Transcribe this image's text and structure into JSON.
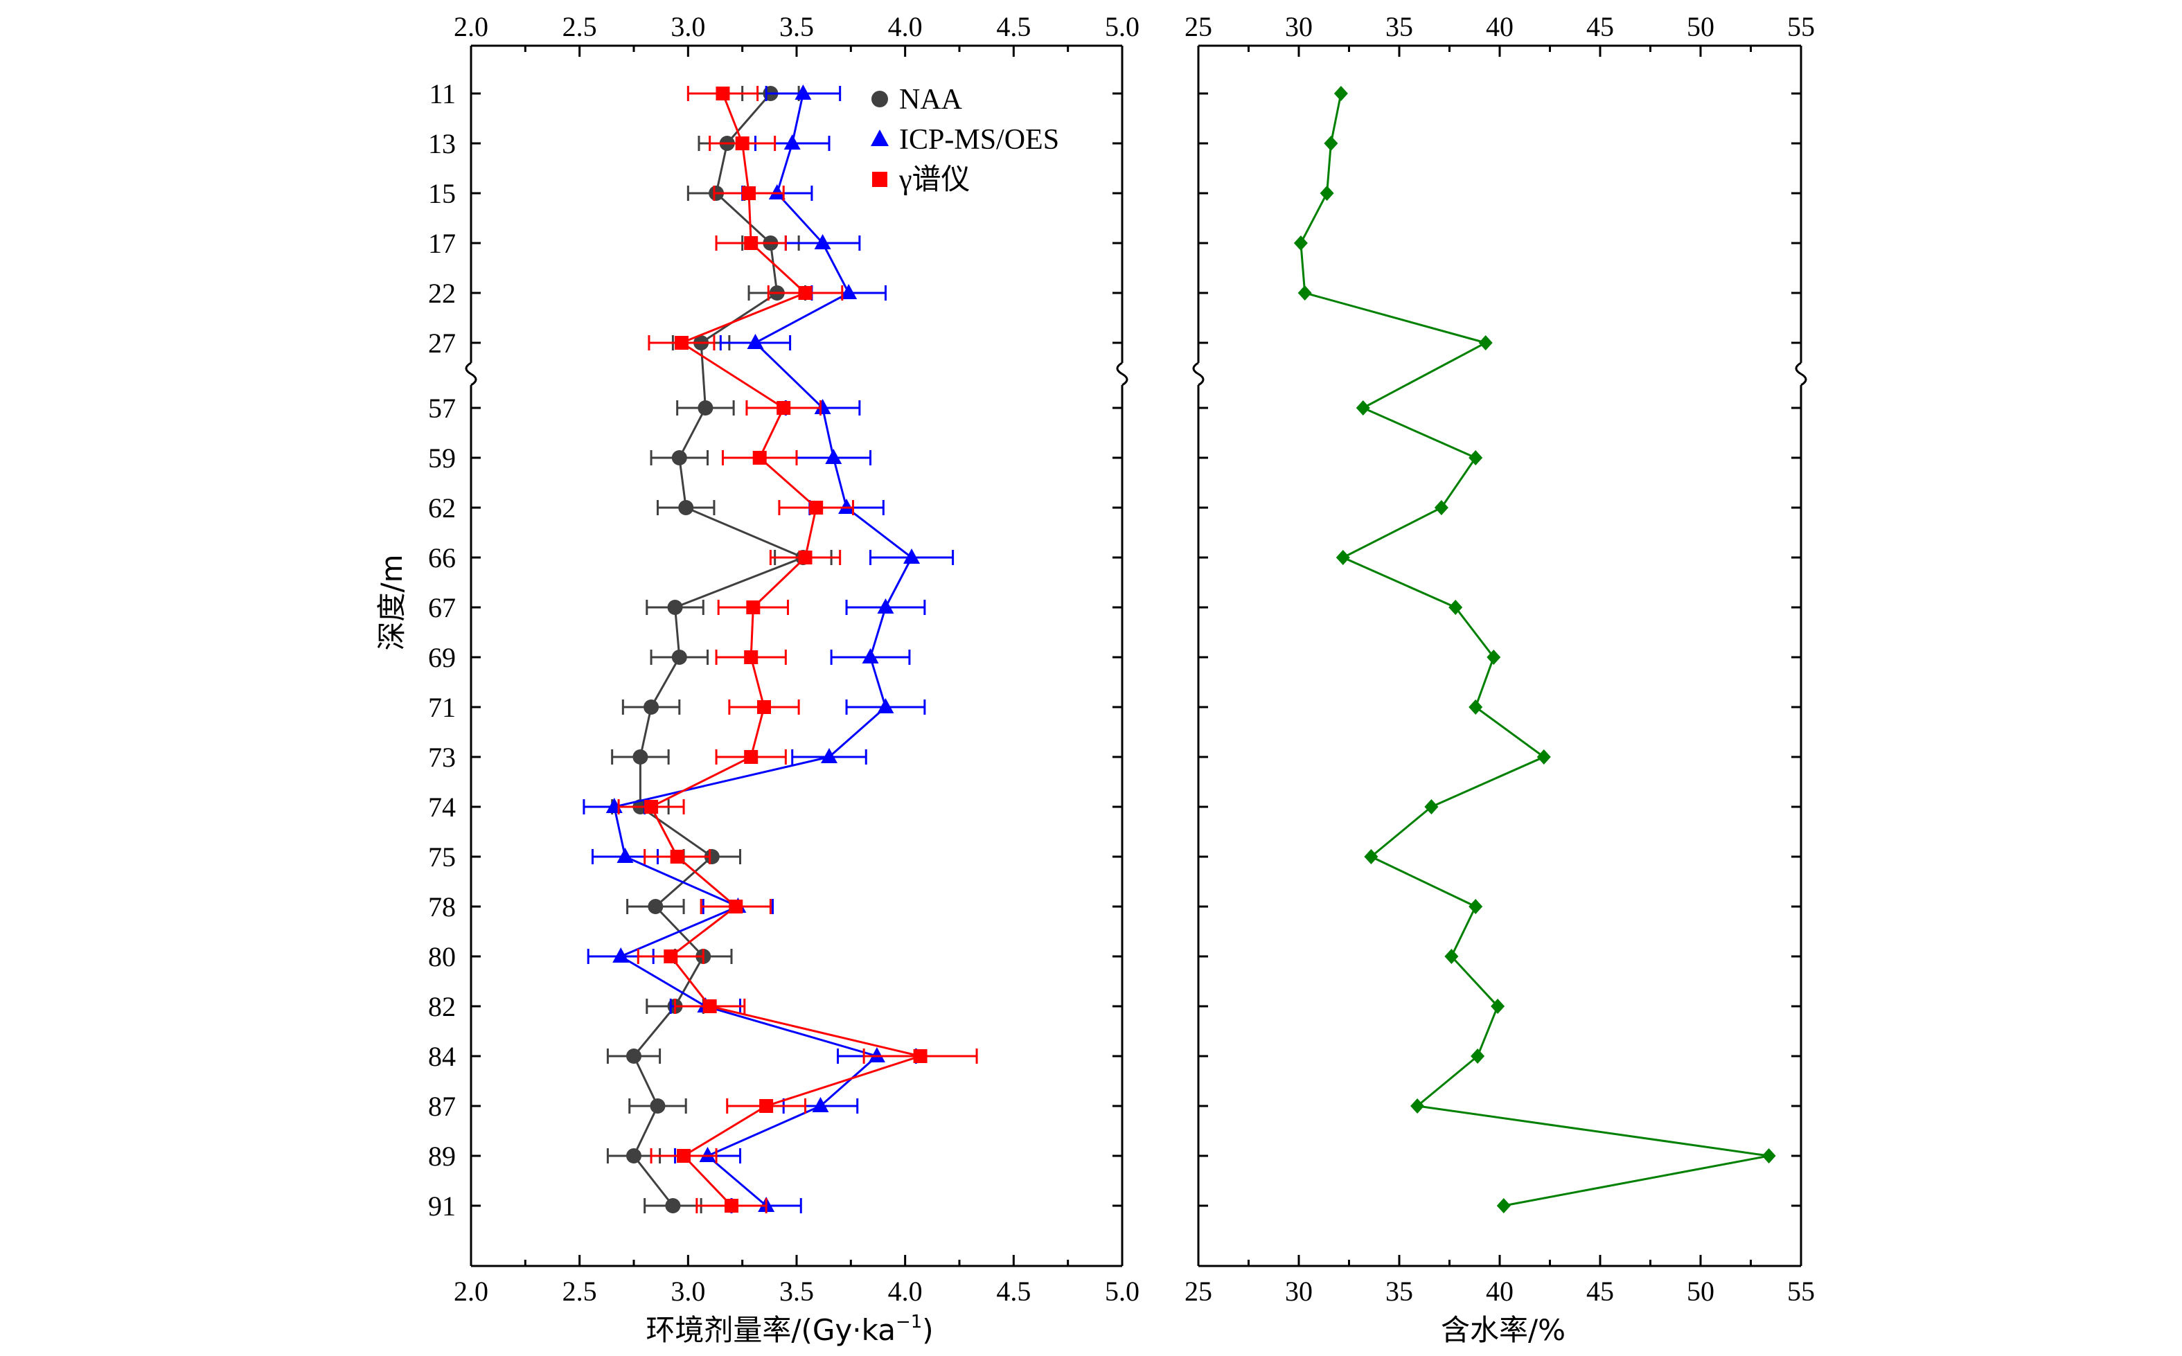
{
  "chart_data": [
    {
      "type": "line",
      "xlabel": "环境剂量率/(Gy·ka",
      "xlabel_sup": "−1",
      "xlabel_close": ")",
      "ylabel": "深度/m",
      "xlim": [
        2.0,
        5.0
      ],
      "x_ticks": [
        "2.0",
        "2.5",
        "3.0",
        "3.5",
        "4.0",
        "4.5",
        "5.0"
      ],
      "x_tick_values": [
        2.0,
        2.5,
        3.0,
        3.5,
        4.0,
        4.5,
        5.0
      ],
      "categories": [
        "11",
        "13",
        "15",
        "17",
        "22",
        "27",
        "57",
        "59",
        "62",
        "66",
        "67",
        "69",
        "71",
        "73",
        "74",
        "75",
        "78",
        "80",
        "82",
        "84",
        "87",
        "89",
        "91"
      ],
      "axis_break_after": "27",
      "legend_position": "top-right",
      "series": [
        {
          "name": "NAA",
          "color": "#404040",
          "marker": "circle",
          "values": [
            3.38,
            3.18,
            3.13,
            3.38,
            3.41,
            3.06,
            3.08,
            2.96,
            2.99,
            3.53,
            2.94,
            2.96,
            2.83,
            2.78,
            2.78,
            3.11,
            2.85,
            3.07,
            2.94,
            2.75,
            2.86,
            2.75,
            2.93
          ],
          "errors": [
            0.13,
            0.13,
            0.13,
            0.13,
            0.13,
            0.13,
            0.13,
            0.13,
            0.13,
            0.13,
            0.13,
            0.13,
            0.13,
            0.13,
            0.13,
            0.13,
            0.13,
            0.13,
            0.13,
            0.12,
            0.13,
            0.12,
            0.13
          ]
        },
        {
          "name": "ICP-MS/OES",
          "color": "#0000ff",
          "marker": "triangle",
          "values": [
            3.53,
            3.48,
            3.41,
            3.62,
            3.74,
            3.31,
            3.62,
            3.67,
            3.73,
            4.03,
            3.91,
            3.84,
            3.91,
            3.65,
            2.66,
            2.71,
            3.23,
            2.69,
            3.08,
            3.87,
            3.61,
            3.09,
            3.36
          ],
          "errors": [
            0.17,
            0.17,
            0.16,
            0.17,
            0.17,
            0.16,
            0.17,
            0.17,
            0.17,
            0.19,
            0.18,
            0.18,
            0.18,
            0.17,
            0.14,
            0.15,
            0.16,
            0.15,
            0.16,
            0.18,
            0.17,
            0.15,
            0.16
          ]
        },
        {
          "name": "γ谱仪",
          "color": "#ff0000",
          "marker": "square",
          "values": [
            3.16,
            3.25,
            3.28,
            3.29,
            3.54,
            2.97,
            3.44,
            3.33,
            3.59,
            3.54,
            3.3,
            3.29,
            3.35,
            3.29,
            2.83,
            2.95,
            3.22,
            2.92,
            3.1,
            4.07,
            3.36,
            2.98,
            3.2
          ],
          "errors": [
            0.16,
            0.15,
            0.16,
            0.16,
            0.17,
            0.15,
            0.17,
            0.17,
            0.17,
            0.16,
            0.16,
            0.16,
            0.16,
            0.16,
            0.15,
            0.15,
            0.16,
            0.15,
            0.16,
            0.26,
            0.18,
            0.15,
            0.16
          ]
        }
      ]
    },
    {
      "type": "line",
      "xlabel": "含水率/%",
      "xlim": [
        25,
        55
      ],
      "x_ticks": [
        "25",
        "30",
        "35",
        "40",
        "45",
        "50",
        "55"
      ],
      "x_tick_values": [
        25,
        30,
        35,
        40,
        45,
        50,
        55
      ],
      "categories": [
        "11",
        "13",
        "15",
        "17",
        "22",
        "27",
        "57",
        "59",
        "62",
        "66",
        "67",
        "69",
        "71",
        "73",
        "74",
        "75",
        "78",
        "80",
        "82",
        "84",
        "87",
        "89",
        "91"
      ],
      "axis_break_after": "27",
      "series": [
        {
          "color": "#008000",
          "marker": "diamond",
          "values": [
            32.1,
            31.6,
            31.4,
            30.1,
            30.3,
            39.3,
            33.2,
            38.8,
            37.1,
            32.2,
            37.8,
            39.7,
            38.8,
            42.2,
            36.6,
            33.6,
            38.8,
            37.6,
            39.9,
            38.9,
            35.9,
            53.4,
            40.2
          ]
        }
      ]
    }
  ]
}
